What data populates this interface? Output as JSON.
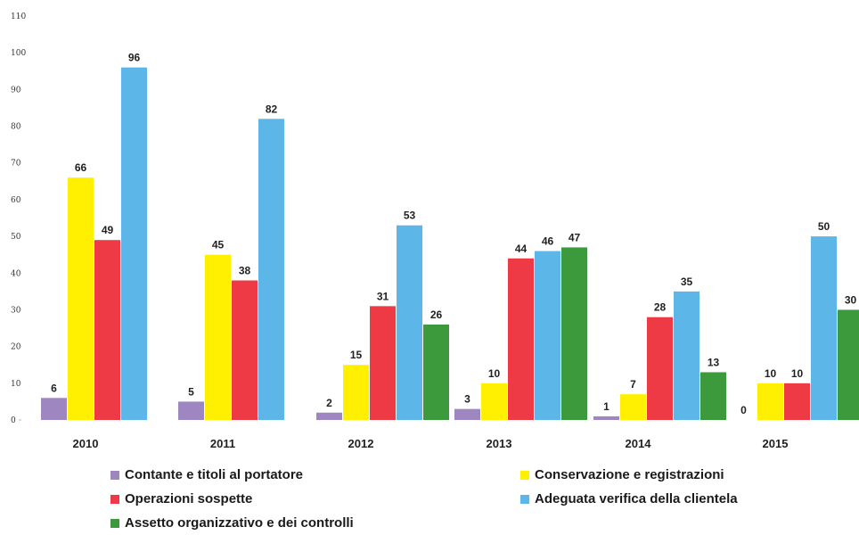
{
  "chart_data": {
    "type": "bar",
    "categories": [
      "2010",
      "2011",
      "2012",
      "2013",
      "2014",
      "2015"
    ],
    "ylim": [
      0,
      110
    ],
    "yticks": [
      0,
      10,
      20,
      30,
      40,
      50,
      60,
      70,
      80,
      90,
      100,
      110
    ],
    "grid": false,
    "legend_position": "bottom",
    "series": [
      {
        "name": "Contante e titoli al portatore",
        "color": "#9e86c0",
        "values": [
          6,
          5,
          2,
          3,
          1,
          0
        ]
      },
      {
        "name": "Conservazione e registrazioni",
        "color": "#ffef00",
        "values": [
          66,
          45,
          15,
          10,
          7,
          10
        ]
      },
      {
        "name": "Operazioni sospette",
        "color": "#ee3a45",
        "values": [
          49,
          38,
          31,
          44,
          28,
          10
        ]
      },
      {
        "name": "Adeguata verifica della clientela",
        "color": "#5cb6e8",
        "values": [
          96,
          82,
          53,
          46,
          35,
          50
        ]
      },
      {
        "name": "Assetto organizzativo e dei controlli",
        "color": "#3c9a3c",
        "values": [
          null,
          null,
          26,
          47,
          13,
          30
        ]
      }
    ]
  }
}
